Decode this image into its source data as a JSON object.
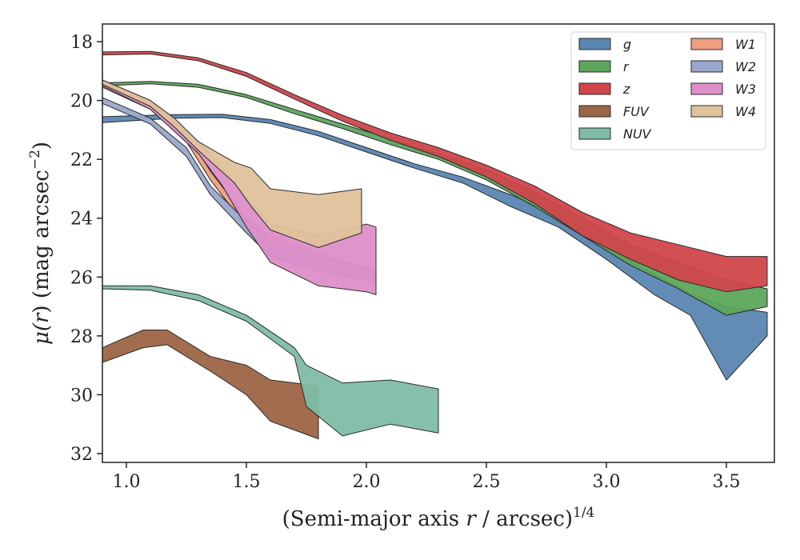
{
  "chart_data": {
    "type": "area",
    "xlabel_main": "(Semi-major axis ",
    "xlabel_var": "r",
    "xlabel_rest": " / arcsec)",
    "xlabel_sup": "1/4",
    "ylabel_main": "μ(",
    "ylabel_var": "r",
    "ylabel_rest": ") (mag arcsec",
    "ylabel_sup": "−2",
    "ylabel_close": ")",
    "xlim": [
      0.9,
      3.7
    ],
    "ylim": [
      32.3,
      17.4
    ],
    "y_inverted": true,
    "xticks": [
      1.0,
      1.5,
      2.0,
      2.5,
      3.0,
      3.5
    ],
    "xtick_labels": [
      "1.0",
      "1.5",
      "2.0",
      "2.5",
      "3.0",
      "3.5"
    ],
    "yticks": [
      18,
      20,
      22,
      24,
      26,
      28,
      30,
      32
    ],
    "ytick_labels": [
      "18",
      "20",
      "22",
      "24",
      "26",
      "28",
      "30",
      "32"
    ],
    "grid": false,
    "legend_placement": "top-right",
    "series": [
      {
        "name": "g",
        "color": "#5a86b2",
        "upper": [
          [
            0.9,
            20.55
          ],
          [
            1.2,
            20.48
          ],
          [
            1.4,
            20.47
          ],
          [
            1.6,
            20.65
          ],
          [
            1.8,
            21.05
          ],
          [
            2.0,
            21.6
          ],
          [
            2.2,
            22.15
          ],
          [
            2.4,
            22.6
          ],
          [
            2.6,
            23.2
          ],
          [
            2.8,
            23.9
          ],
          [
            3.0,
            25.0
          ],
          [
            3.2,
            25.9
          ],
          [
            3.35,
            26.55
          ],
          [
            3.5,
            27.0
          ],
          [
            3.67,
            27.2
          ]
        ],
        "lower": [
          [
            0.9,
            20.75
          ],
          [
            1.2,
            20.6
          ],
          [
            1.4,
            20.58
          ],
          [
            1.6,
            20.78
          ],
          [
            1.8,
            21.2
          ],
          [
            2.0,
            21.75
          ],
          [
            2.2,
            22.3
          ],
          [
            2.4,
            22.8
          ],
          [
            2.6,
            23.6
          ],
          [
            2.8,
            24.3
          ],
          [
            3.0,
            25.4
          ],
          [
            3.2,
            26.6
          ],
          [
            3.35,
            27.3
          ],
          [
            3.5,
            29.5
          ],
          [
            3.67,
            28.0
          ]
        ]
      },
      {
        "name": "r",
        "color": "#5ca65c",
        "upper": [
          [
            0.9,
            19.4
          ],
          [
            1.1,
            19.35
          ],
          [
            1.3,
            19.45
          ],
          [
            1.5,
            19.8
          ],
          [
            1.7,
            20.3
          ],
          [
            1.9,
            20.8
          ],
          [
            2.1,
            21.3
          ],
          [
            2.3,
            21.8
          ],
          [
            2.5,
            22.35
          ],
          [
            2.7,
            23.1
          ],
          [
            2.9,
            24.0
          ],
          [
            3.1,
            24.9
          ],
          [
            3.3,
            25.5
          ],
          [
            3.5,
            26.1
          ],
          [
            3.67,
            26.4
          ]
        ],
        "lower": [
          [
            0.9,
            19.5
          ],
          [
            1.1,
            19.43
          ],
          [
            1.3,
            19.55
          ],
          [
            1.5,
            19.9
          ],
          [
            1.7,
            20.45
          ],
          [
            1.9,
            20.95
          ],
          [
            2.1,
            21.5
          ],
          [
            2.3,
            22.0
          ],
          [
            2.5,
            22.7
          ],
          [
            2.7,
            23.6
          ],
          [
            2.9,
            24.6
          ],
          [
            3.1,
            25.6
          ],
          [
            3.3,
            26.4
          ],
          [
            3.5,
            27.3
          ],
          [
            3.67,
            27.0
          ]
        ]
      },
      {
        "name": "z",
        "color": "#d0464b",
        "upper": [
          [
            0.9,
            18.35
          ],
          [
            1.1,
            18.33
          ],
          [
            1.3,
            18.55
          ],
          [
            1.5,
            19.05
          ],
          [
            1.7,
            19.8
          ],
          [
            1.9,
            20.5
          ],
          [
            2.1,
            21.1
          ],
          [
            2.3,
            21.6
          ],
          [
            2.5,
            22.2
          ],
          [
            2.7,
            22.9
          ],
          [
            2.9,
            23.8
          ],
          [
            3.1,
            24.5
          ],
          [
            3.3,
            24.9
          ],
          [
            3.5,
            25.3
          ],
          [
            3.67,
            25.3
          ]
        ],
        "lower": [
          [
            0.9,
            18.45
          ],
          [
            1.1,
            18.42
          ],
          [
            1.3,
            18.65
          ],
          [
            1.5,
            19.18
          ],
          [
            1.7,
            19.95
          ],
          [
            1.9,
            20.7
          ],
          [
            2.1,
            21.35
          ],
          [
            2.3,
            21.9
          ],
          [
            2.5,
            22.6
          ],
          [
            2.7,
            23.5
          ],
          [
            2.9,
            24.6
          ],
          [
            3.1,
            25.4
          ],
          [
            3.3,
            26.1
          ],
          [
            3.5,
            26.5
          ],
          [
            3.67,
            26.3
          ]
        ]
      },
      {
        "name": "FUV",
        "color": "#9d6546",
        "upper": [
          [
            0.9,
            28.4
          ],
          [
            1.07,
            27.8
          ],
          [
            1.17,
            27.8
          ],
          [
            1.35,
            28.7
          ],
          [
            1.5,
            29.0
          ],
          [
            1.6,
            29.5
          ],
          [
            1.8,
            29.7
          ]
        ],
        "lower": [
          [
            0.9,
            28.9
          ],
          [
            1.07,
            28.4
          ],
          [
            1.17,
            28.3
          ],
          [
            1.35,
            29.2
          ],
          [
            1.5,
            30.0
          ],
          [
            1.6,
            30.9
          ],
          [
            1.8,
            31.5
          ]
        ]
      },
      {
        "name": "NUV",
        "color": "#7fbda6",
        "upper": [
          [
            0.9,
            26.3
          ],
          [
            1.1,
            26.3
          ],
          [
            1.3,
            26.6
          ],
          [
            1.5,
            27.3
          ],
          [
            1.7,
            28.4
          ],
          [
            1.75,
            29.0
          ],
          [
            1.9,
            29.6
          ],
          [
            2.1,
            29.5
          ],
          [
            2.3,
            29.8
          ]
        ],
        "lower": [
          [
            0.9,
            26.4
          ],
          [
            1.1,
            26.45
          ],
          [
            1.3,
            26.8
          ],
          [
            1.5,
            27.5
          ],
          [
            1.7,
            28.7
          ],
          [
            1.75,
            30.4
          ],
          [
            1.9,
            31.4
          ],
          [
            2.1,
            31.0
          ],
          [
            2.3,
            31.3
          ]
        ]
      },
      {
        "name": "W1",
        "color": "#ef9f7f",
        "upper": [
          [
            0.9,
            19.35
          ],
          [
            1.1,
            20.1
          ],
          [
            1.25,
            21.1
          ],
          [
            1.35,
            22.4
          ],
          [
            1.5,
            24.0
          ],
          [
            1.6,
            24.6
          ],
          [
            1.8,
            25.2
          ],
          [
            2.0,
            25.7
          ],
          [
            2.04,
            25.8
          ]
        ],
        "lower": [
          [
            0.9,
            19.55
          ],
          [
            1.1,
            20.3
          ],
          [
            1.25,
            21.4
          ],
          [
            1.35,
            22.7
          ],
          [
            1.5,
            24.3
          ],
          [
            1.6,
            25.0
          ],
          [
            1.8,
            25.6
          ],
          [
            2.0,
            26.0
          ],
          [
            2.04,
            26.1
          ]
        ]
      },
      {
        "name": "W2",
        "color": "#9aa8cc",
        "upper": [
          [
            0.9,
            19.9
          ],
          [
            1.1,
            20.6
          ],
          [
            1.25,
            21.6
          ],
          [
            1.35,
            22.9
          ],
          [
            1.5,
            24.1
          ],
          [
            1.6,
            24.8
          ],
          [
            1.8,
            25.3
          ],
          [
            2.0,
            25.7
          ],
          [
            2.04,
            25.8
          ]
        ],
        "lower": [
          [
            0.9,
            20.1
          ],
          [
            1.1,
            20.8
          ],
          [
            1.25,
            21.9
          ],
          [
            1.35,
            23.2
          ],
          [
            1.5,
            24.5
          ],
          [
            1.6,
            25.3
          ],
          [
            1.8,
            25.8
          ],
          [
            2.0,
            26.1
          ],
          [
            2.04,
            26.3
          ]
        ]
      },
      {
        "name": "W3",
        "color": "#dd8fc9",
        "upper": [
          [
            0.9,
            19.3
          ],
          [
            1.1,
            20.0
          ],
          [
            1.3,
            21.4
          ],
          [
            1.4,
            22.3
          ],
          [
            1.5,
            23.3
          ],
          [
            1.6,
            24.2
          ],
          [
            1.8,
            24.6
          ],
          [
            2.0,
            24.2
          ],
          [
            2.04,
            24.3
          ]
        ],
        "lower": [
          [
            0.9,
            19.5
          ],
          [
            1.1,
            20.3
          ],
          [
            1.3,
            21.8
          ],
          [
            1.4,
            22.9
          ],
          [
            1.5,
            24.3
          ],
          [
            1.6,
            25.5
          ],
          [
            1.8,
            26.3
          ],
          [
            2.0,
            26.5
          ],
          [
            2.04,
            26.6
          ]
        ]
      },
      {
        "name": "W4",
        "color": "#dfc29c",
        "upper": [
          [
            0.9,
            19.3
          ],
          [
            1.1,
            20.0
          ],
          [
            1.2,
            20.6
          ],
          [
            1.3,
            21.4
          ],
          [
            1.45,
            22.1
          ],
          [
            1.52,
            22.3
          ],
          [
            1.6,
            23.0
          ],
          [
            1.8,
            23.2
          ],
          [
            1.98,
            23.0
          ]
        ],
        "lower": [
          [
            0.9,
            19.45
          ],
          [
            1.1,
            20.2
          ],
          [
            1.2,
            20.9
          ],
          [
            1.3,
            21.7
          ],
          [
            1.45,
            22.8
          ],
          [
            1.52,
            23.6
          ],
          [
            1.6,
            24.4
          ],
          [
            1.8,
            25.0
          ],
          [
            1.98,
            24.5
          ]
        ]
      }
    ]
  }
}
